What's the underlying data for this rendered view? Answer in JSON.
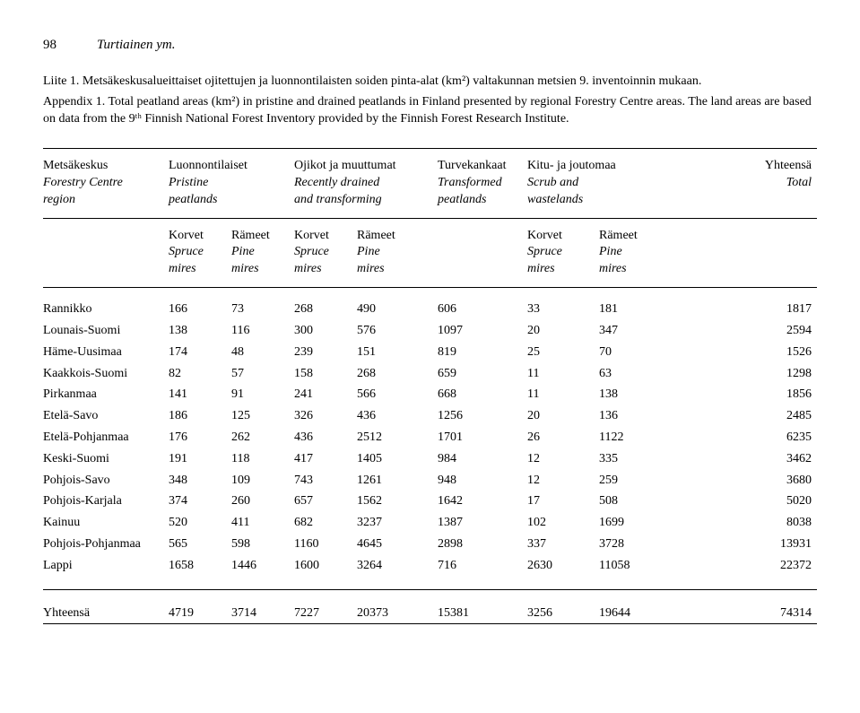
{
  "page_number": "98",
  "running_head": "Turtiainen ym.",
  "caption_fi": "Liite 1. Metsäkeskusalueittaiset ojitettujen ja luonnontilaisten soiden pinta-alat (km²) valtakunnan metsien 9. inventoinnin mukaan.",
  "caption_en": "Appendix 1. Total peatland areas (km²) in pristine and drained peatlands in Finland presented by regional Forestry Centre areas. The land areas are based on data from the 9ᵗʰ Finnish National Forest Inventory provided by the Finnish Forest Research Institute.",
  "headers1": {
    "region_fi": "Metsäkeskus",
    "luon_fi": "Luonnontilaiset",
    "ojik_fi": "Ojikot ja muuttumat",
    "turve_fi": "Turvekankaat",
    "kitu_fi": "Kitu- ja joutomaa",
    "yht_fi": "Yhteensä",
    "region_en": "Forestry Centre",
    "luon_en": "Pristine",
    "ojik_en": "Recently drained",
    "turve_en": "Transformed",
    "kitu_en": "Scrub and",
    "yht_en": "Total",
    "region_en2": "region",
    "luon_en2": "peatlands",
    "ojik_en2": "and transforming",
    "turve_en2": "peatlands",
    "kitu_en2": "wastelands"
  },
  "headers2": {
    "korvet": "Korvet",
    "rameet": "Rämeet",
    "spruce": "Spruce",
    "pine": "Pine",
    "mires": "mires"
  },
  "rows": [
    {
      "region": "Rannikko",
      "l1": "166",
      "l2": "73",
      "o1": "268",
      "o2": "490",
      "t": "606",
      "k1": "33",
      "k2": "181",
      "y": "1817"
    },
    {
      "region": "Lounais-Suomi",
      "l1": "138",
      "l2": "116",
      "o1": "300",
      "o2": "576",
      "t": "1097",
      "k1": "20",
      "k2": "347",
      "y": "2594"
    },
    {
      "region": "Häme-Uusimaa",
      "l1": "174",
      "l2": "48",
      "o1": "239",
      "o2": "151",
      "t": "819",
      "k1": "25",
      "k2": "70",
      "y": "1526"
    },
    {
      "region": "Kaakkois-Suomi",
      "l1": "82",
      "l2": "57",
      "o1": "158",
      "o2": "268",
      "t": "659",
      "k1": "11",
      "k2": "63",
      "y": "1298"
    },
    {
      "region": "Pirkanmaa",
      "l1": "141",
      "l2": "91",
      "o1": "241",
      "o2": "566",
      "t": "668",
      "k1": "11",
      "k2": "138",
      "y": "1856"
    },
    {
      "region": "Etelä-Savo",
      "l1": "186",
      "l2": "125",
      "o1": "326",
      "o2": "436",
      "t": "1256",
      "k1": "20",
      "k2": "136",
      "y": "2485"
    },
    {
      "region": "Etelä-Pohjanmaa",
      "l1": "176",
      "l2": "262",
      "o1": "436",
      "o2": "2512",
      "t": "1701",
      "k1": "26",
      "k2": "1122",
      "y": "6235"
    },
    {
      "region": "Keski-Suomi",
      "l1": "191",
      "l2": "118",
      "o1": "417",
      "o2": "1405",
      "t": "984",
      "k1": "12",
      "k2": "335",
      "y": "3462"
    },
    {
      "region": "Pohjois-Savo",
      "l1": "348",
      "l2": "109",
      "o1": "743",
      "o2": "1261",
      "t": "948",
      "k1": "12",
      "k2": "259",
      "y": "3680"
    },
    {
      "region": "Pohjois-Karjala",
      "l1": "374",
      "l2": "260",
      "o1": "657",
      "o2": "1562",
      "t": "1642",
      "k1": "17",
      "k2": "508",
      "y": "5020"
    },
    {
      "region": "Kainuu",
      "l1": "520",
      "l2": "411",
      "o1": "682",
      "o2": "3237",
      "t": "1387",
      "k1": "102",
      "k2": "1699",
      "y": "8038"
    },
    {
      "region": "Pohjois-Pohjanmaa",
      "l1": "565",
      "l2": "598",
      "o1": "1160",
      "o2": "4645",
      "t": "2898",
      "k1": "337",
      "k2": "3728",
      "y": "13931"
    },
    {
      "region": "Lappi",
      "l1": "1658",
      "l2": "1446",
      "o1": "1600",
      "o2": "3264",
      "t": "716",
      "k1": "2630",
      "k2": "11058",
      "y": "22372"
    }
  ],
  "total": {
    "region": "Yhteensä",
    "l1": "4719",
    "l2": "3714",
    "o1": "7227",
    "o2": "20373",
    "t": "15381",
    "k1": "3256",
    "k2": "19644",
    "y": "74314"
  }
}
